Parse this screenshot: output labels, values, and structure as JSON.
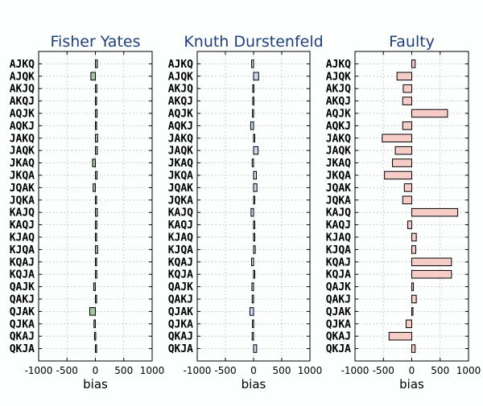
{
  "chart_data": [
    {
      "type": "bar",
      "orientation": "horizontal",
      "title": "Fisher Yates",
      "xlabel": "bias",
      "ylabel": "",
      "xlim": [
        -1000,
        1000
      ],
      "xticks": [
        -1000,
        -500,
        0,
        500,
        1000
      ],
      "xtick_labels": [
        "-1000",
        "-500",
        "0",
        "500",
        "1000"
      ],
      "grid": true,
      "bar_color": "#a3c4a0",
      "categories": [
        "AJKQ",
        "AJQK",
        "AKJQ",
        "AKQJ",
        "AQJK",
        "AQKJ",
        "JAKQ",
        "JAQK",
        "JKAQ",
        "JKQA",
        "JQAK",
        "JQKA",
        "KAJQ",
        "KAQJ",
        "KJAQ",
        "KJQA",
        "KQAJ",
        "KQJA",
        "QAJK",
        "QAKJ",
        "QJAK",
        "QJKA",
        "QKAJ",
        "QKJA"
      ],
      "values": [
        35,
        -80,
        25,
        10,
        30,
        15,
        40,
        35,
        -50,
        30,
        -40,
        15,
        35,
        25,
        20,
        40,
        10,
        25,
        -30,
        10,
        -100,
        -25,
        -15,
        20
      ]
    },
    {
      "type": "bar",
      "orientation": "horizontal",
      "title": "Knuth Durstenfeld",
      "xlabel": "bias",
      "ylabel": "",
      "xlim": [
        -1000,
        1000
      ],
      "xticks": [
        -1000,
        -500,
        0,
        500,
        1000
      ],
      "xtick_labels": [
        "-1000",
        "-500",
        "0",
        "500",
        "1000"
      ],
      "grid": true,
      "bar_color": "#c8d8f0",
      "categories": [
        "AJKQ",
        "AJQK",
        "AKJQ",
        "AKQJ",
        "AQJK",
        "AQKJ",
        "JAKQ",
        "JAQK",
        "JKAQ",
        "JKQA",
        "JQAK",
        "JQKA",
        "KAJQ",
        "KAQJ",
        "KJAQ",
        "KJQA",
        "KQAJ",
        "KQJA",
        "QAJK",
        "QAKJ",
        "QJAK",
        "QJKA",
        "QKAJ",
        "QKJA"
      ],
      "values": [
        -35,
        90,
        -15,
        -15,
        -20,
        -50,
        10,
        80,
        -25,
        50,
        60,
        15,
        -45,
        15,
        15,
        30,
        -35,
        20,
        -30,
        -25,
        -65,
        -20,
        -25,
        55
      ]
    },
    {
      "type": "bar",
      "orientation": "horizontal",
      "title": "Faulty",
      "xlabel": "bias",
      "ylabel": "",
      "xlim": [
        -1000,
        1000
      ],
      "xticks": [
        -1000,
        -500,
        0,
        500,
        1000
      ],
      "xtick_labels": [
        "-1000",
        "-500",
        "0",
        "500",
        "1000"
      ],
      "grid": true,
      "bar_color": "#f5cdc6",
      "categories": [
        "AJKQ",
        "AJQK",
        "AKJQ",
        "AKQJ",
        "AQJK",
        "AQKJ",
        "JAKQ",
        "JAQK",
        "JKAQ",
        "JKQA",
        "JQAK",
        "JQKA",
        "KAJQ",
        "KAQJ",
        "KJAQ",
        "KJQA",
        "KQAJ",
        "KQJA",
        "QAJK",
        "QAKJ",
        "QJAK",
        "QJKA",
        "QKAJ",
        "QKJA"
      ],
      "values": [
        60,
        -260,
        -150,
        -160,
        630,
        -160,
        -520,
        -290,
        -340,
        -480,
        -130,
        -160,
        810,
        -70,
        80,
        70,
        700,
        700,
        30,
        80,
        10,
        -100,
        -400,
        60
      ]
    }
  ]
}
